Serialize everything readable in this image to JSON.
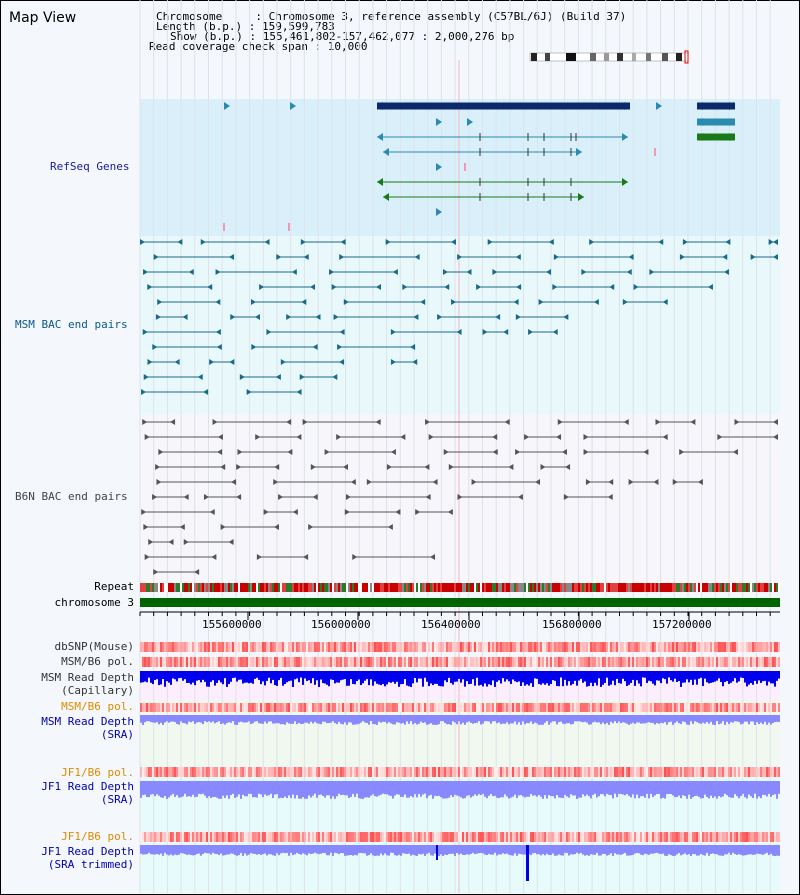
{
  "header": {
    "title": "Map View",
    "info": [
      "Chromosome     : Chromosome 3, reference assembly (C57BL/6J) (Build 37)",
      "Length (b.p.) : 159,599,783",
      "Show (b.p.) : 155,461,802-157,462,077 : 2,000,276 bp",
      "Read coverage check span : 10,000"
    ]
  },
  "tracks": {
    "refseq": "RefSeq Genes",
    "msm_bac": "MSM BAC end pairs",
    "b6n_bac": "B6N BAC end pairs",
    "repeat": "Repeat",
    "chromosome": "chromosome 3",
    "dbsnp": "dbSNP(Mouse)",
    "msm_pol": "MSM/B6 pol.",
    "msm_depth_cap_1": "MSM Read Depth",
    "msm_depth_cap_2": "(Capillary)",
    "msm_pol2": "MSM/B6 pol.",
    "msm_depth_sra_1": "MSM Read Depth",
    "msm_depth_sra_2": "(SRA)",
    "jf1_pol": "JF1/B6 pol.",
    "jf1_depth_1": "JF1 Read Depth",
    "jf1_depth_2": "(SRA)",
    "jf1_pol2": "JF1/B6 pol.",
    "jf1_trim_1": "JF1 Read Depth",
    "jf1_trim_2": "(SRA trimmed)"
  },
  "axis": {
    "ticks": [
      "155600000",
      "156000000",
      "156400000",
      "156800000",
      "157200000"
    ]
  },
  "colors": {
    "refseq_bg": "#d9f0fa",
    "msm_bg": "#e8f8fb",
    "depth_bg": "#f0f8f0",
    "gene_dark": "#0a2a6a",
    "gene_teal": "#2a8ab0",
    "gene_green": "#1a7a1a",
    "msm_pair": "#1a6a8a",
    "b6n_pair": "#555555",
    "chromosome_green": "#006400",
    "depth_blue": "#0000ee",
    "depth_light": "#8888ff",
    "orange_label": "#e08a00",
    "navy_label": "#0000aa"
  }
}
